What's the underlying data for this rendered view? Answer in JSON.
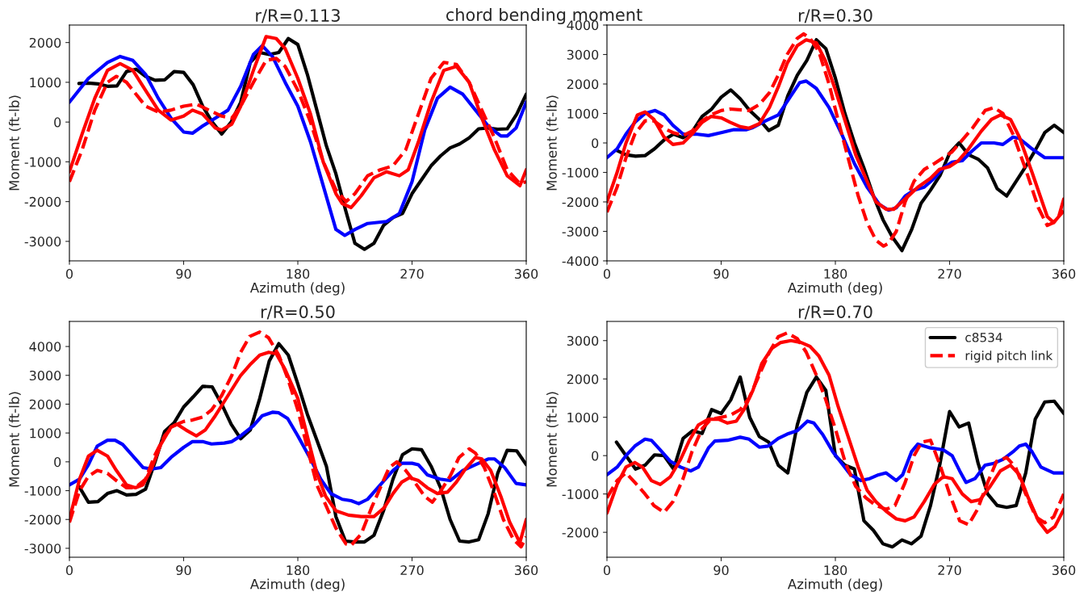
{
  "chart_data": [
    {
      "type": "line",
      "title": "r/R=0.113",
      "xlabel": "Azimuth (deg)",
      "ylabel": "Moment (ft-lb)",
      "xlim": [
        0,
        360
      ],
      "xticks": [
        0,
        90,
        180,
        270,
        360
      ],
      "ylim": [
        -3490,
        2440
      ],
      "yticks": [
        -3000,
        -2000,
        -1000,
        0,
        1000,
        2000
      ],
      "grid": false,
      "legend": false,
      "annotations": [
        "chord bending moment"
      ],
      "series": [
        {
          "color": "#000000",
          "line_style": "solid",
          "x": [
            7.5,
            15,
            22.5,
            30,
            37.5,
            45,
            52.5,
            60,
            67.5,
            75,
            82.5,
            90,
            97.5,
            105,
            112.5,
            120,
            127.5,
            135,
            142.5,
            150,
            157.5,
            165,
            172.5,
            180,
            187.5,
            195,
            202.5,
            210,
            217.5,
            225,
            232.5,
            240,
            247.5,
            255,
            262.5,
            270,
            277.5,
            285,
            292.5,
            300,
            307.5,
            315,
            322.5,
            330,
            337.5,
            345,
            352.5,
            360
          ],
          "values": [
            970,
            980,
            960,
            900,
            910,
            1270,
            1330,
            1150,
            1050,
            1060,
            1270,
            1250,
            940,
            400,
            0,
            -300,
            0,
            500,
            1500,
            1750,
            1700,
            1750,
            2100,
            1950,
            1200,
            300,
            -600,
            -1300,
            -2200,
            -3050,
            -3200,
            -3050,
            -2600,
            -2400,
            -2300,
            -1800,
            -1450,
            -1100,
            -850,
            -650,
            -550,
            -400,
            -170,
            -150,
            -180,
            -170,
            200,
            700
          ]
        },
        {
          "color": "#0000ff",
          "line_style": "solid",
          "x": [
            0,
            15,
            30,
            40,
            50,
            60,
            70,
            80,
            90,
            97,
            105,
            115,
            125,
            135,
            145,
            152,
            160,
            170,
            180,
            190,
            200,
            210,
            217,
            225,
            235,
            250,
            260,
            270,
            280,
            290,
            300,
            310,
            320,
            330,
            340,
            345,
            352,
            360
          ],
          "values": [
            500,
            1100,
            1500,
            1650,
            1550,
            1200,
            600,
            100,
            -250,
            -280,
            -100,
            100,
            300,
            900,
            1700,
            1920,
            1650,
            1000,
            400,
            -500,
            -1600,
            -2700,
            -2850,
            -2700,
            -2550,
            -2500,
            -2300,
            -1500,
            -200,
            600,
            880,
            700,
            300,
            -100,
            -350,
            -350,
            -150,
            500
          ]
        },
        {
          "color": "#ff0000",
          "line_style": "dashed",
          "x": [
            0,
            10,
            20,
            30,
            37,
            45,
            60,
            70,
            80,
            90,
            100,
            110,
            120,
            128,
            135,
            145,
            155,
            163,
            170,
            180,
            190,
            200,
            210,
            218,
            225,
            235,
            245,
            255,
            265,
            275,
            285,
            295,
            305,
            315,
            325,
            335,
            345,
            355,
            360
          ],
          "values": [
            -1500,
            -700,
            300,
            1000,
            1150,
            1000,
            400,
            250,
            300,
            400,
            450,
            300,
            150,
            100,
            400,
            1000,
            1550,
            1600,
            1400,
            800,
            0,
            -1000,
            -1700,
            -2000,
            -1800,
            -1350,
            -1200,
            -1100,
            -700,
            200,
            1100,
            1500,
            1450,
            1000,
            300,
            -400,
            -1200,
            -1550,
            -1500
          ]
        },
        {
          "color": "#ff0000",
          "line_style": "solid",
          "x": [
            0,
            10,
            20,
            30,
            40,
            50,
            60,
            70,
            80,
            90,
            97,
            105,
            115,
            120,
            128,
            135,
            145,
            155,
            163,
            170,
            180,
            190,
            200,
            210,
            215,
            222,
            230,
            240,
            250,
            260,
            267,
            275,
            285,
            295,
            305,
            315,
            325,
            335,
            345,
            355,
            360
          ],
          "values": [
            -1250,
            -300,
            600,
            1300,
            1470,
            1300,
            800,
            300,
            50,
            150,
            300,
            200,
            -150,
            -200,
            -50,
            400,
            1300,
            2150,
            2100,
            1850,
            1100,
            200,
            -1000,
            -1800,
            -2050,
            -2150,
            -1850,
            -1400,
            -1250,
            -1350,
            -1200,
            -500,
            500,
            1300,
            1400,
            1000,
            100,
            -700,
            -1350,
            -1600,
            -1200
          ]
        }
      ]
    },
    {
      "type": "line",
      "title": "r/R=0.30",
      "xlabel": "Azimuth (deg)",
      "ylabel": "Moment (ft-lb)",
      "xlim": [
        0,
        360
      ],
      "xticks": [
        0,
        90,
        180,
        270,
        360
      ],
      "ylim": [
        -4000,
        4000
      ],
      "yticks": [
        -4000,
        -3000,
        -2000,
        -1000,
        0,
        1000,
        2000,
        3000,
        4000
      ],
      "grid": false,
      "legend": false,
      "series": [
        {
          "color": "#000000",
          "line_style": "solid",
          "x": [
            7.5,
            15,
            22.5,
            30,
            37.5,
            45,
            52.5,
            60,
            67.5,
            75,
            82.5,
            90,
            97.5,
            105,
            112.5,
            120,
            127.5,
            135,
            142.5,
            150,
            157.5,
            165,
            172.5,
            180,
            187.5,
            195,
            202.5,
            210,
            217.5,
            225,
            232.5,
            240,
            247.5,
            255,
            262.5,
            270,
            277.5,
            285,
            292.5,
            300,
            307.5,
            315,
            322.5,
            330,
            337.5,
            345,
            352.5,
            360
          ],
          "values": [
            -250,
            -400,
            -450,
            -430,
            -200,
            100,
            300,
            180,
            400,
            900,
            1150,
            1550,
            1800,
            1500,
            1100,
            800,
            420,
            600,
            1600,
            2300,
            2800,
            3500,
            3200,
            2200,
            1000,
            0,
            -850,
            -1800,
            -2600,
            -3200,
            -3650,
            -2950,
            -2050,
            -1600,
            -1100,
            -350,
            0,
            -400,
            -550,
            -850,
            -1550,
            -1800,
            -1300,
            -800,
            -250,
            350,
            600,
            350
          ]
        },
        {
          "color": "#0000ff",
          "line_style": "solid",
          "x": [
            0,
            8,
            15,
            22,
            30,
            38,
            45,
            52,
            60,
            70,
            80,
            90,
            100,
            110,
            115,
            125,
            135,
            145,
            152,
            157,
            165,
            175,
            185,
            195,
            205,
            215,
            222,
            228,
            235,
            242,
            250,
            258,
            265,
            272,
            280,
            287,
            295,
            305,
            312,
            320,
            325,
            335,
            345,
            360
          ],
          "values": [
            -500,
            -200,
            300,
            700,
            1000,
            1100,
            950,
            600,
            300,
            300,
            250,
            350,
            450,
            450,
            520,
            750,
            950,
            1600,
            2050,
            2100,
            1850,
            1200,
            300,
            -700,
            -1500,
            -2100,
            -2280,
            -2200,
            -1800,
            -1600,
            -1500,
            -1200,
            -850,
            -650,
            -600,
            -300,
            0,
            0,
            -50,
            200,
            150,
            -200,
            -500,
            -500
          ]
        },
        {
          "color": "#ff0000",
          "line_style": "dashed",
          "x": [
            0,
            8,
            15,
            22,
            30,
            37,
            45,
            52,
            60,
            67,
            75,
            82,
            90,
            97,
            112,
            120,
            128,
            135,
            142,
            150,
            155,
            160,
            167,
            175,
            182,
            190,
            198,
            205,
            212,
            218,
            222,
            228,
            235,
            242,
            250,
            258,
            265,
            272,
            280,
            288,
            298,
            305,
            312,
            320,
            330,
            340,
            347,
            352,
            360
          ],
          "values": [
            -2350,
            -1500,
            -500,
            300,
            750,
            750,
            500,
            350,
            250,
            400,
            750,
            950,
            1100,
            1150,
            1100,
            1300,
            1700,
            2300,
            3000,
            3550,
            3700,
            3550,
            3100,
            2000,
            800,
            -500,
            -1800,
            -2700,
            -3300,
            -3500,
            -3400,
            -3000,
            -2000,
            -1300,
            -900,
            -700,
            -500,
            -300,
            100,
            500,
            1100,
            1200,
            1000,
            300,
            -900,
            -2200,
            -2800,
            -2700,
            -2300
          ]
        },
        {
          "color": "#ff0000",
          "line_style": "solid",
          "x": [
            0,
            8,
            15,
            24,
            30,
            37,
            45,
            52,
            60,
            67,
            75,
            82,
            90,
            97,
            105,
            112,
            120,
            128,
            135,
            142,
            150,
            157,
            165,
            172,
            180,
            188,
            196,
            205,
            212,
            220,
            226,
            235,
            245,
            255,
            262,
            270,
            277,
            285,
            295,
            303,
            310,
            318,
            325,
            335,
            347,
            352,
            356,
            360
          ],
          "values": [
            -2000,
            -1000,
            0,
            950,
            1050,
            800,
            200,
            -50,
            0,
            300,
            700,
            900,
            850,
            700,
            550,
            500,
            650,
            1200,
            1900,
            2700,
            3300,
            3500,
            3400,
            2800,
            1800,
            700,
            -400,
            -1300,
            -2000,
            -2250,
            -2250,
            -1900,
            -1500,
            -1200,
            -900,
            -800,
            -600,
            -200,
            400,
            800,
            950,
            800,
            200,
            -1000,
            -2500,
            -2700,
            -2500,
            -1900
          ]
        }
      ]
    },
    {
      "type": "line",
      "title": "r/R=0.50",
      "xlabel": "Azimuth (deg)",
      "ylabel": "Moment (ft-lb)",
      "xlim": [
        0,
        360
      ],
      "xticks": [
        0,
        90,
        180,
        270,
        360
      ],
      "ylim": [
        -3310,
        4870
      ],
      "yticks": [
        -3000,
        -2000,
        -1000,
        0,
        1000,
        2000,
        3000,
        4000
      ],
      "grid": false,
      "legend": false,
      "series": [
        {
          "color": "#000000",
          "line_style": "solid",
          "x": [
            7.5,
            15,
            22.5,
            30,
            37.5,
            45,
            52.5,
            60,
            67.5,
            75,
            82.5,
            90,
            97.5,
            105,
            112.5,
            120,
            127.5,
            135,
            142.5,
            150,
            157.5,
            165,
            172.5,
            180,
            187.5,
            195,
            202.5,
            210,
            217.5,
            225,
            232.5,
            240,
            247.5,
            255,
            262.5,
            270,
            277.5,
            285,
            292.5,
            300,
            307.5,
            315,
            322.5,
            330,
            337.5,
            345,
            352.5,
            360
          ],
          "values": [
            -850,
            -1400,
            -1380,
            -1100,
            -1000,
            -1150,
            -1130,
            -950,
            0,
            1050,
            1350,
            1900,
            2250,
            2620,
            2600,
            2000,
            1300,
            800,
            1100,
            2200,
            3500,
            4100,
            3700,
            2700,
            1650,
            750,
            -150,
            -1900,
            -2750,
            -2780,
            -2780,
            -2550,
            -1700,
            -600,
            250,
            450,
            420,
            -150,
            -900,
            -2000,
            -2750,
            -2780,
            -2700,
            -1800,
            -400,
            400,
            380,
            -100
          ]
        },
        {
          "color": "#0000ff",
          "line_style": "solid",
          "x": [
            0,
            8,
            15,
            22,
            30,
            36,
            42,
            50,
            58,
            65,
            72,
            80,
            90,
            97,
            105,
            112,
            122,
            128,
            135,
            145,
            152,
            160,
            165,
            172,
            180,
            190,
            198,
            206,
            215,
            222,
            228,
            235,
            245,
            255,
            262,
            270,
            275,
            282,
            292,
            300,
            310,
            320,
            330,
            335,
            343,
            352,
            360
          ],
          "values": [
            -800,
            -600,
            -100,
            550,
            750,
            750,
            600,
            200,
            -200,
            -250,
            -200,
            150,
            500,
            700,
            700,
            620,
            650,
            700,
            900,
            1250,
            1600,
            1720,
            1700,
            1500,
            900,
            100,
            -600,
            -1100,
            -1300,
            -1350,
            -1450,
            -1300,
            -800,
            -300,
            -50,
            -50,
            -100,
            -450,
            -600,
            -650,
            -300,
            -100,
            100,
            100,
            -200,
            -750,
            -800
          ]
        },
        {
          "color": "#ff0000",
          "line_style": "dashed",
          "x": [
            0,
            8,
            15,
            22,
            30,
            37,
            45,
            52,
            60,
            67,
            75,
            82,
            90,
            97,
            105,
            112,
            120,
            128,
            135,
            142,
            150,
            157,
            165,
            172,
            180,
            188,
            195,
            202,
            210,
            218,
            222,
            230,
            238,
            245,
            252,
            258,
            265,
            272,
            280,
            286,
            292,
            300,
            307,
            315,
            320,
            327,
            335,
            342,
            350,
            356,
            360
          ],
          "values": [
            -2100,
            -1000,
            -500,
            -300,
            -400,
            -650,
            -900,
            -900,
            -600,
            200,
            900,
            1250,
            1400,
            1450,
            1550,
            1800,
            2300,
            3000,
            3800,
            4350,
            4500,
            4300,
            3700,
            2900,
            1800,
            400,
            -800,
            -1500,
            -2300,
            -2850,
            -2900,
            -2500,
            -1600,
            -900,
            -200,
            0,
            -300,
            -700,
            -1200,
            -1400,
            -1050,
            -500,
            150,
            450,
            300,
            -200,
            -1100,
            -2000,
            -2700,
            -2950,
            -2600
          ]
        },
        {
          "color": "#ff0000",
          "line_style": "solid",
          "x": [
            0,
            8,
            15,
            22,
            30,
            37,
            45,
            52,
            58,
            65,
            72,
            80,
            85,
            92,
            100,
            107,
            115,
            125,
            135,
            143,
            150,
            157,
            163,
            170,
            180,
            188,
            195,
            202,
            210,
            220,
            230,
            240,
            248,
            255,
            262,
            268,
            275,
            282,
            290,
            298,
            305,
            312,
            320,
            325,
            332,
            340,
            347,
            355,
            360
          ],
          "values": [
            -2000,
            -600,
            200,
            400,
            200,
            -300,
            -800,
            -900,
            -800,
            -200,
            600,
            1200,
            1300,
            1100,
            900,
            1100,
            1600,
            2300,
            3000,
            3400,
            3700,
            3800,
            3750,
            3200,
            2200,
            800,
            -400,
            -1200,
            -1700,
            -1850,
            -1900,
            -1900,
            -1600,
            -1100,
            -700,
            -550,
            -650,
            -900,
            -1100,
            -1050,
            -700,
            -250,
            150,
            100,
            -300,
            -1200,
            -2100,
            -2800,
            -2000
          ]
        }
      ]
    },
    {
      "type": "line",
      "title": "r/R=0.70",
      "xlabel": "Azimuth (deg)",
      "ylabel": "Moment (ft-lb)",
      "xlim": [
        0,
        360
      ],
      "xticks": [
        0,
        90,
        180,
        270,
        360
      ],
      "ylim": [
        -2650,
        3500
      ],
      "yticks": [
        -2000,
        -1000,
        0,
        1000,
        2000,
        3000
      ],
      "grid": false,
      "legend": "top right",
      "series": [
        {
          "name": "c8534",
          "color": "#000000",
          "line_style": "solid",
          "x": [
            7.5,
            15,
            22.5,
            30,
            37.5,
            45,
            52.5,
            60,
            67.5,
            75,
            82.5,
            90,
            97.5,
            105,
            112.5,
            120,
            127.5,
            135,
            142.5,
            150,
            157.5,
            165,
            172.5,
            180,
            187.5,
            195,
            202.5,
            210,
            217.5,
            225,
            232.5,
            240,
            247.5,
            255,
            262.5,
            270,
            277.5,
            285,
            292.5,
            300,
            307.5,
            315,
            322.5,
            330,
            337.5,
            345,
            352.5,
            360
          ],
          "values": [
            350,
            0,
            -350,
            -250,
            20,
            0,
            -350,
            450,
            650,
            580,
            1200,
            1100,
            1450,
            2050,
            1000,
            500,
            350,
            -250,
            -450,
            800,
            1650,
            2050,
            1700,
            0,
            -250,
            -350,
            -1700,
            -1950,
            -2300,
            -2380,
            -2200,
            -2300,
            -2100,
            -1300,
            -200,
            1150,
            750,
            850,
            -200,
            -1000,
            -1300,
            -1350,
            -1300,
            -450,
            950,
            1400,
            1420,
            1100
          ]
        },
        {
          "color": "#0000ff",
          "line_style": "solid",
          "x": [
            0,
            8,
            15,
            22,
            30,
            35,
            42,
            50,
            58,
            66,
            72,
            80,
            85,
            95,
            105,
            112,
            120,
            127,
            135,
            142,
            150,
            158,
            163,
            170,
            178,
            185,
            192,
            200,
            207,
            214,
            220,
            228,
            233,
            240,
            245,
            255,
            265,
            272,
            278,
            283,
            290,
            298,
            305,
            312,
            320,
            325,
            330,
            335,
            342,
            352,
            360
          ],
          "values": [
            -500,
            -300,
            0,
            250,
            430,
            400,
            150,
            -150,
            -300,
            -400,
            -300,
            200,
            380,
            400,
            480,
            430,
            220,
            250,
            450,
            560,
            650,
            900,
            850,
            550,
            100,
            -200,
            -500,
            -650,
            -600,
            -500,
            -450,
            -650,
            -500,
            100,
            300,
            200,
            150,
            0,
            -400,
            -700,
            -600,
            -250,
            -200,
            -100,
            100,
            250,
            300,
            100,
            -300,
            -450,
            -450
          ]
        },
        {
          "name": "rigid pitch link",
          "color": "#ff0000",
          "line_style": "dashed",
          "x": [
            0,
            8,
            15,
            22,
            30,
            37,
            45,
            52,
            60,
            67,
            75,
            82,
            90,
            97,
            105,
            112,
            120,
            128,
            135,
            142,
            150,
            157,
            165,
            172,
            180,
            188,
            196,
            204,
            212,
            220,
            227,
            235,
            242,
            248,
            255,
            262,
            270,
            278,
            285,
            292,
            300,
            307,
            315,
            322,
            330,
            338,
            345,
            352,
            360
          ],
          "values": [
            -1100,
            -650,
            -450,
            -700,
            -1000,
            -1300,
            -1480,
            -1200,
            -600,
            100,
            700,
            950,
            1000,
            1050,
            1200,
            1500,
            2100,
            2700,
            3100,
            3200,
            3050,
            2700,
            2100,
            1500,
            700,
            -200,
            -800,
            -1100,
            -1300,
            -1400,
            -1300,
            -700,
            0,
            350,
            400,
            -200,
            -1000,
            -1700,
            -1800,
            -1400,
            -700,
            -150,
            -50,
            -300,
            -1000,
            -1600,
            -1750,
            -1600,
            -1000
          ]
        },
        {
          "color": "#ff0000",
          "line_style": "solid",
          "x": [
            0,
            8,
            15,
            22,
            28,
            35,
            42,
            50,
            58,
            65,
            72,
            80,
            88,
            95,
            102,
            108,
            115,
            122,
            130,
            137,
            145,
            153,
            160,
            167,
            175,
            182,
            190,
            198,
            205,
            212,
            220,
            228,
            235,
            242,
            250,
            258,
            265,
            272,
            280,
            287,
            294,
            302,
            310,
            318,
            325,
            332,
            340,
            347,
            353,
            360
          ],
          "values": [
            -1500,
            -750,
            -300,
            -180,
            -300,
            -650,
            -750,
            -550,
            -100,
            400,
            800,
            950,
            950,
            850,
            900,
            1200,
            1700,
            2400,
            2800,
            2950,
            3000,
            2950,
            2850,
            2600,
            2100,
            1300,
            500,
            -300,
            -900,
            -1200,
            -1450,
            -1650,
            -1700,
            -1600,
            -1200,
            -750,
            -550,
            -600,
            -1000,
            -1200,
            -1150,
            -800,
            -400,
            -250,
            -500,
            -1100,
            -1700,
            -2000,
            -1850,
            -1400
          ]
        }
      ]
    }
  ]
}
